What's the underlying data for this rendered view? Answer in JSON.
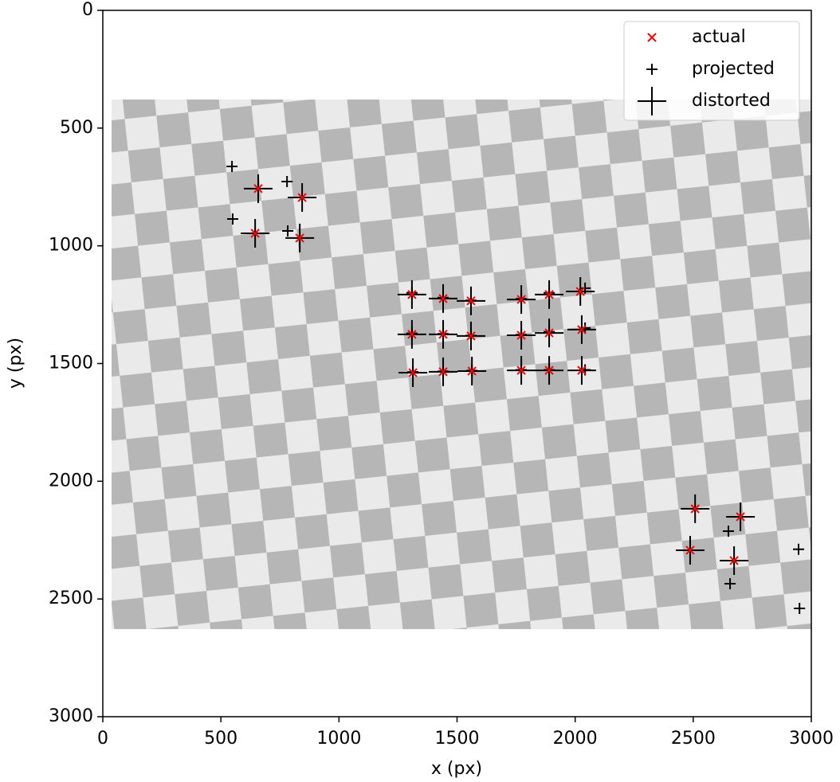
{
  "chart_data": {
    "type": "scatter",
    "xlabel": "x (px)",
    "ylabel": "y (px)",
    "xlim": [
      0,
      3000
    ],
    "ylim": [
      0,
      3000
    ],
    "y_inverted": true,
    "xticks": [
      0,
      500,
      1000,
      1500,
      2000,
      2500,
      3000
    ],
    "yticks": [
      0,
      500,
      1000,
      1500,
      2000,
      2500,
      3000
    ],
    "legend": "upper right",
    "series": [
      {
        "name": "actual",
        "color": "#ff0000",
        "marker": "x",
        "x": [
          658,
          844,
          645,
          834,
          1309,
          1441,
          1559,
          1772,
          1890,
          2022,
          1309,
          1441,
          1559,
          1772,
          1890,
          2028,
          1313,
          1441,
          1563,
          1772,
          1890,
          2028,
          2508,
          2700,
          2487,
          2673
        ],
        "values": [
          757,
          795,
          947,
          967,
          1207,
          1224,
          1234,
          1228,
          1207,
          1194,
          1376,
          1376,
          1383,
          1380,
          1370,
          1356,
          1539,
          1535,
          1532,
          1529,
          1529,
          1529,
          2117,
          2151,
          2293,
          2337
        ]
      },
      {
        "name": "projected",
        "color": "#000000",
        "marker": "plus",
        "x": [
          547,
          780,
          550,
          783,
          1309,
          1441,
          1559,
          1772,
          1890,
          2042,
          1309,
          1441,
          1559,
          1772,
          1890,
          2042,
          1313,
          1441,
          1563,
          1772,
          1890,
          2042,
          2649,
          2656,
          2946,
          2950
        ],
        "values": [
          663,
          727,
          886,
          937,
          1200,
          1220,
          1232,
          1225,
          1200,
          1180,
          1372,
          1374,
          1381,
          1378,
          1365,
          1349,
          1536,
          1533,
          1530,
          1527,
          1527,
          1527,
          2212,
          2435,
          2289,
          2540
        ]
      },
      {
        "name": "distorted",
        "color": "#000000",
        "marker": "bigplus",
        "x": [
          658,
          844,
          645,
          834,
          1309,
          1441,
          1559,
          1772,
          1890,
          2022,
          1309,
          1441,
          1559,
          1772,
          1890,
          2028,
          1313,
          1441,
          1563,
          1772,
          1890,
          2028,
          2508,
          2700,
          2487,
          2673
        ],
        "values": [
          757,
          795,
          947,
          967,
          1207,
          1224,
          1234,
          1228,
          1207,
          1194,
          1376,
          1376,
          1383,
          1380,
          1370,
          1356,
          1539,
          1535,
          1532,
          1529,
          1529,
          1529,
          2117,
          2151,
          2293,
          2337
        ]
      }
    ]
  }
}
